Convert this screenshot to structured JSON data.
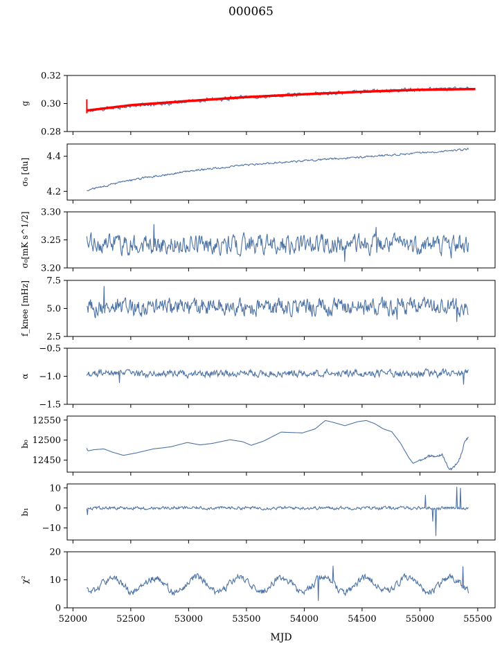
{
  "figure": {
    "title": "000065"
  },
  "colors": {
    "series": "#4c72a4",
    "fit": "#ff0000",
    "axis": "#000000"
  },
  "chart_data": {
    "type": "line",
    "shared_x": {
      "label": "MJD",
      "xlim": [
        51950,
        55650
      ],
      "data_range": [
        52120,
        55420
      ],
      "ticks": [
        52000,
        52500,
        53000,
        53500,
        54000,
        54500,
        55000,
        55500
      ],
      "tick_labels": [
        "52000",
        "52500",
        "53000",
        "53500",
        "54000",
        "54500",
        "55000",
        "55500"
      ]
    },
    "panels": [
      {
        "id": "g",
        "ylabel": "g",
        "ylim": [
          0.28,
          0.32
        ],
        "yticks": [
          0.28,
          0.3,
          0.32
        ],
        "ytick_labels": [
          "0.28",
          "0.30",
          "0.32"
        ],
        "style": "trend",
        "anchors": [
          [
            52120,
            0.2945
          ],
          [
            52500,
            0.2985
          ],
          [
            53000,
            0.3015
          ],
          [
            53500,
            0.3045
          ],
          [
            54000,
            0.3065
          ],
          [
            54500,
            0.3085
          ],
          [
            55000,
            0.31
          ],
          [
            55420,
            0.3105
          ]
        ],
        "noise": 0.001,
        "overlay": {
          "name": "fit",
          "anchors": [
            [
              52120,
              0.295
            ],
            [
              52500,
              0.2988
            ],
            [
              53000,
              0.3018
            ],
            [
              53500,
              0.3046
            ],
            [
              54000,
              0.3066
            ],
            [
              54500,
              0.3084
            ],
            [
              55000,
              0.3098
            ],
            [
              55480,
              0.3103
            ]
          ],
          "width": 3.5
        }
      },
      {
        "id": "sigma0_du",
        "ylabel": "σ₀ [du]",
        "ylim": [
          4.15,
          4.47
        ],
        "yticks": [
          4.2,
          4.4
        ],
        "ytick_labels": [
          "4.2",
          "4.4"
        ],
        "style": "trend",
        "anchors": [
          [
            52120,
            4.205
          ],
          [
            52300,
            4.235
          ],
          [
            52600,
            4.275
          ],
          [
            53000,
            4.315
          ],
          [
            53500,
            4.35
          ],
          [
            54000,
            4.375
          ],
          [
            54500,
            4.395
          ],
          [
            55000,
            4.42
          ],
          [
            55420,
            4.44
          ]
        ],
        "noise": 0.004
      },
      {
        "id": "sigma0_mk",
        "ylabel": "σ₀[mK s^1/2]",
        "ylim": [
          3.2,
          3.3
        ],
        "yticks": [
          3.2,
          3.25,
          3.3
        ],
        "ytick_labels": [
          "3.20",
          "3.25",
          "3.30"
        ],
        "style": "noise",
        "mean": 3.242,
        "amp": 0.012,
        "extrema": [
          [
            52700,
            3.278
          ],
          [
            54620,
            3.273
          ],
          [
            54350,
            3.211
          ],
          [
            55270,
            3.217
          ]
        ]
      },
      {
        "id": "f_knee",
        "ylabel": "f_knee [mHz]",
        "ylim": [
          2.5,
          7.5
        ],
        "yticks": [
          2.5,
          5.0,
          7.5
        ],
        "ytick_labels": [
          "2.5",
          "5.0",
          "7.5"
        ],
        "style": "noise",
        "mean": 5.1,
        "amp": 0.55,
        "extrema": [
          [
            52270,
            7.0
          ],
          [
            54800,
            4.0
          ],
          [
            55320,
            3.8
          ]
        ]
      },
      {
        "id": "alpha",
        "ylabel": "α",
        "ylim": [
          -1.5,
          -0.5
        ],
        "yticks": [
          -1.5,
          -1.0,
          -0.5
        ],
        "ytick_labels": [
          "−1.5",
          "−1.0",
          "−0.5"
        ],
        "style": "noise",
        "mean": -0.95,
        "amp": 0.045,
        "extrema": [
          [
            52400,
            -1.12
          ],
          [
            55380,
            -1.15
          ]
        ]
      },
      {
        "id": "b0",
        "ylabel": "b₀",
        "ylim": [
          12420,
          12560
        ],
        "yticks": [
          12450,
          12500,
          12550
        ],
        "ytick_labels": [
          "12450",
          "12500",
          "12550"
        ],
        "style": "smooth",
        "anchors": [
          [
            52120,
            12480
          ],
          [
            52130,
            12473
          ],
          [
            52200,
            12476
          ],
          [
            52320,
            12478
          ],
          [
            52420,
            12470
          ],
          [
            52550,
            12462
          ],
          [
            52700,
            12468
          ],
          [
            52900,
            12478
          ],
          [
            53100,
            12483
          ],
          [
            53300,
            12494
          ],
          [
            53450,
            12488
          ],
          [
            53600,
            12492
          ],
          [
            53800,
            12501
          ],
          [
            53950,
            12496
          ],
          [
            54050,
            12487
          ],
          [
            54200,
            12498
          ],
          [
            54400,
            12520
          ],
          [
            54520,
            12519
          ],
          [
            54650,
            12518
          ],
          [
            54800,
            12528
          ],
          [
            54920,
            12549
          ],
          [
            55000,
            12545
          ],
          [
            55150,
            12536
          ],
          [
            55300,
            12546
          ],
          [
            55400,
            12549
          ],
          [
            55500,
            12541
          ],
          [
            55600,
            12528
          ],
          [
            55700,
            12521
          ],
          [
            55800,
            12493
          ],
          [
            55900,
            12456
          ],
          [
            55950,
            12442
          ],
          [
            56050,
            12452
          ],
          [
            56150,
            12462
          ],
          [
            56220,
            12460
          ],
          [
            56290,
            12464
          ],
          [
            56330,
            12448
          ],
          [
            56360,
            12430
          ],
          [
            56410,
            12428
          ],
          [
            56480,
            12446
          ],
          [
            56520,
            12468
          ],
          [
            56560,
            12500
          ],
          [
            56600,
            12506
          ]
        ],
        "x_map": "compressed"
      },
      {
        "id": "b1",
        "ylabel": "b₁",
        "ylim": [
          -16,
          12
        ],
        "yticks": [
          -10,
          0,
          10
        ],
        "ytick_labels": [
          "−10",
          "0",
          "10"
        ],
        "style": "noise",
        "mean": 0.0,
        "amp": 0.55,
        "extrema": [
          [
            52125,
            -3.5
          ],
          [
            55050,
            6.5
          ],
          [
            55110,
            -6.8
          ],
          [
            55140,
            -14.0
          ],
          [
            55320,
            10.5
          ],
          [
            55350,
            10.0
          ]
        ]
      },
      {
        "id": "chi2",
        "ylabel": "χ²",
        "ylim": [
          0,
          20
        ],
        "yticks": [
          0,
          10,
          20
        ],
        "ytick_labels": [
          "0",
          "10",
          "20"
        ],
        "style": "periodic",
        "mean": 8.3,
        "season_amp": 2.6,
        "period": 365.25,
        "phase": 52250,
        "amp": 0.9,
        "extrema": [
          [
            54250,
            15.0
          ],
          [
            54120,
            2.5
          ],
          [
            55370,
            14.8
          ]
        ]
      }
    ]
  }
}
